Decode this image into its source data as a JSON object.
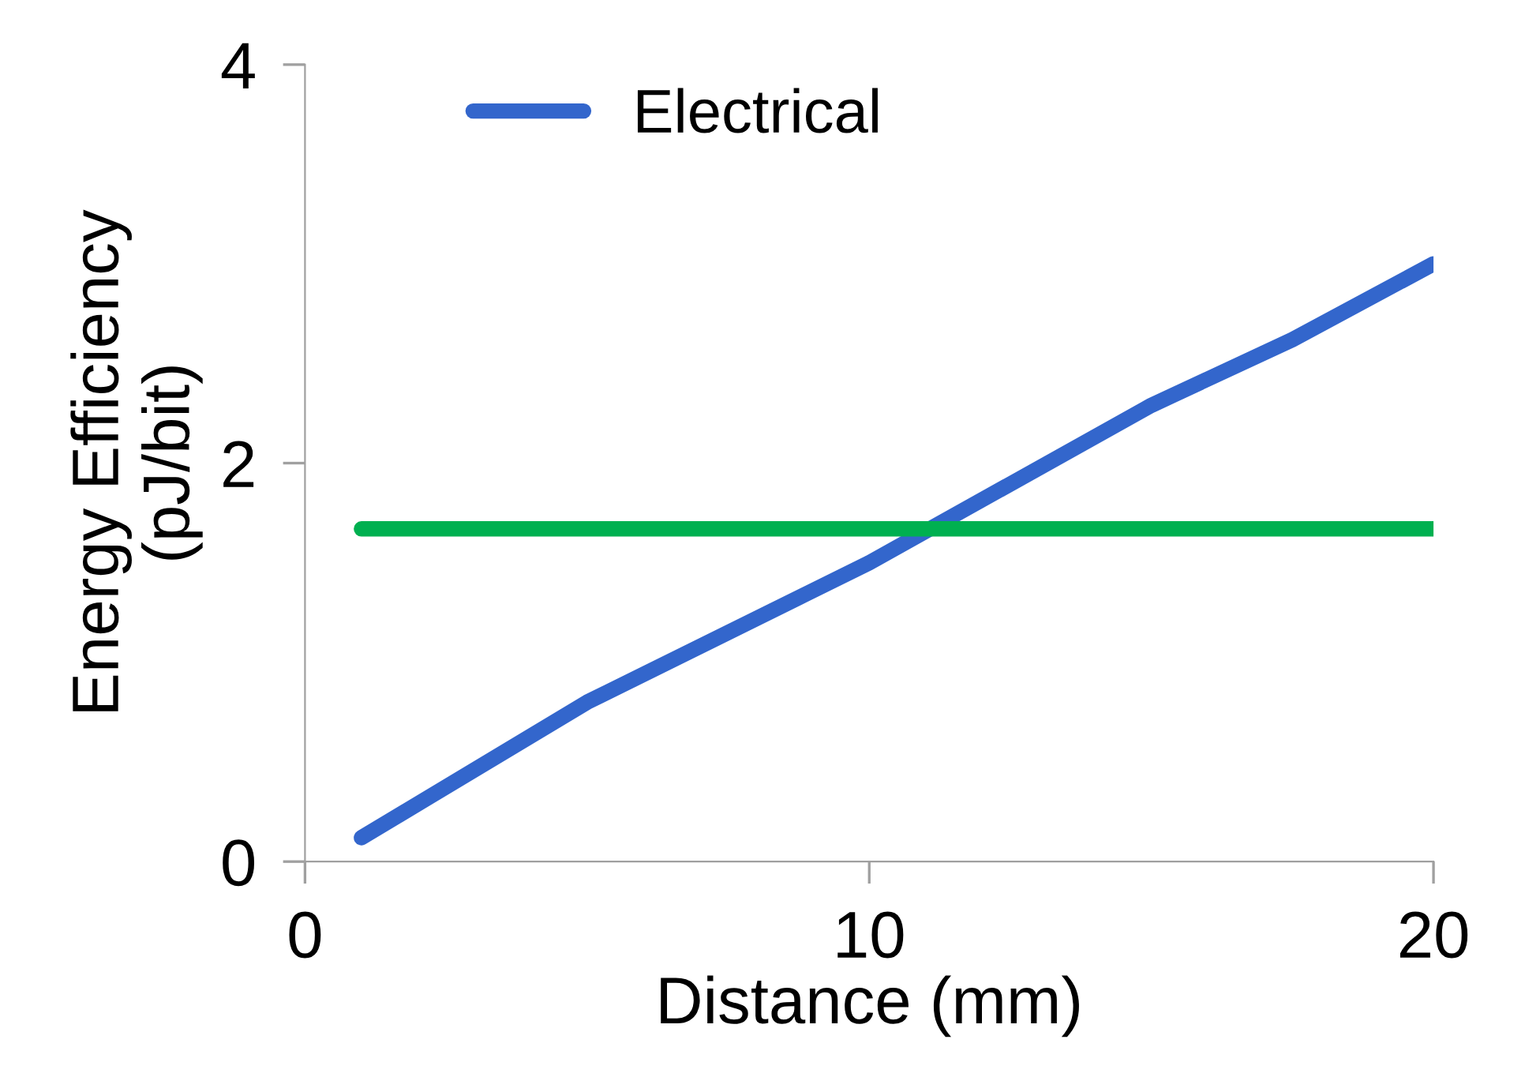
{
  "chart_data": {
    "type": "line",
    "xlabel": "Distance (mm)",
    "ylabel": "Energy Efficiency\n(pJ/bit)",
    "xlim": [
      0,
      20
    ],
    "xticks": [
      0,
      10,
      20
    ],
    "ylim": [
      0,
      4
    ],
    "yticks": [
      0,
      2,
      4
    ],
    "grid": false,
    "legend": "top left",
    "marker": "none",
    "line_style": "solid",
    "series": [
      {
        "name": "Electrical",
        "color": "#3366cc",
        "x": [
          1,
          5,
          10,
          15,
          17.5,
          20
        ],
        "values": [
          0.12,
          0.8,
          1.5,
          2.29,
          2.62,
          3.0
        ]
      },
      {
        "color": "#00b050",
        "x": [
          1,
          20
        ],
        "values": [
          1.67,
          1.67
        ]
      }
    ]
  }
}
